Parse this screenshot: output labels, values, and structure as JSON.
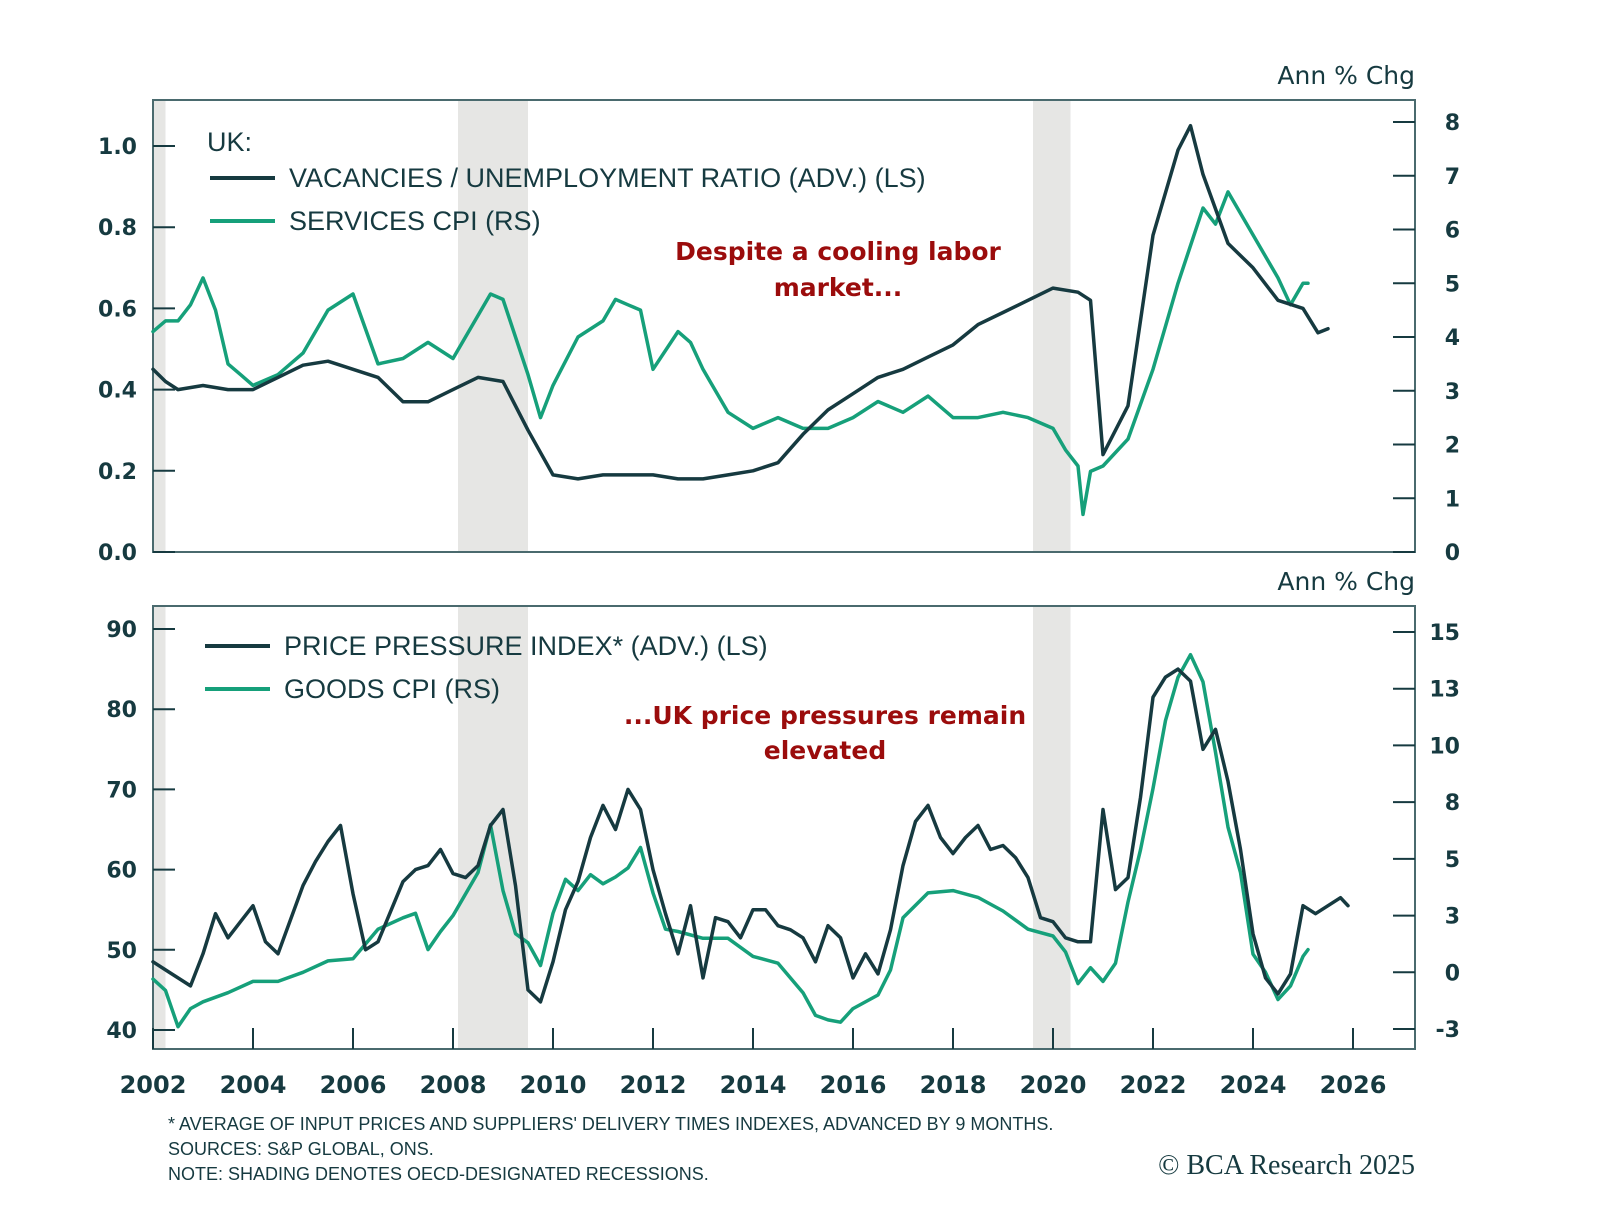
{
  "chart_data": [
    {
      "type": "line",
      "panel": "top",
      "title": "UK:",
      "left_axis": {
        "label": "",
        "range": [
          0.0,
          1.0
        ],
        "ticks": [
          "0.0",
          "0.2",
          "0.4",
          "0.6",
          "0.8",
          "1.0"
        ],
        "tick_values": [
          0,
          0.2,
          0.4,
          0.6,
          0.8,
          1.0
        ]
      },
      "right_axis": {
        "label": "Ann % Chg",
        "range": [
          0,
          8
        ],
        "ticks": [
          "0",
          "1",
          "2",
          "3",
          "4",
          "5",
          "6",
          "7",
          "8"
        ],
        "tick_values": [
          0,
          1,
          2,
          3,
          4,
          5,
          6,
          7,
          8
        ]
      },
      "annotation": [
        "Despite a cooling labor",
        "market..."
      ],
      "series": [
        {
          "name": "VACANCIES / UNEMPLOYMENT RATIO (ADV.) (LS)",
          "axis": "left",
          "color": "#163a40",
          "x": [
            2002.0,
            2002.25,
            2002.5,
            2003.0,
            2003.5,
            2004.0,
            2004.5,
            2005.0,
            2005.5,
            2006.0,
            2006.5,
            2007.0,
            2007.5,
            2008.0,
            2008.5,
            2009.0,
            2009.5,
            2010.0,
            2010.5,
            2011.0,
            2011.5,
            2012.0,
            2012.5,
            2013.0,
            2013.5,
            2014.0,
            2014.5,
            2015.0,
            2015.5,
            2016.0,
            2016.5,
            2017.0,
            2017.5,
            2018.0,
            2018.5,
            2019.0,
            2019.5,
            2020.0,
            2020.5,
            2020.75,
            2021.0,
            2021.5,
            2022.0,
            2022.5,
            2022.75,
            2023.0,
            2023.5,
            2024.0,
            2024.5,
            2025.0,
            2025.3,
            2025.5
          ],
          "values": [
            0.45,
            0.42,
            0.4,
            0.41,
            0.4,
            0.4,
            0.43,
            0.46,
            0.47,
            0.45,
            0.43,
            0.37,
            0.37,
            0.4,
            0.43,
            0.42,
            0.3,
            0.19,
            0.18,
            0.19,
            0.19,
            0.19,
            0.18,
            0.18,
            0.19,
            0.2,
            0.22,
            0.29,
            0.35,
            0.39,
            0.43,
            0.45,
            0.48,
            0.51,
            0.56,
            0.59,
            0.62,
            0.65,
            0.64,
            0.62,
            0.24,
            0.36,
            0.78,
            0.99,
            1.05,
            0.93,
            0.76,
            0.7,
            0.62,
            0.6,
            0.54,
            0.55
          ]
        },
        {
          "name": "SERVICES CPI (RS)",
          "axis": "right",
          "color": "#16a07a",
          "x": [
            2002.0,
            2002.25,
            2002.5,
            2002.75,
            2003.0,
            2003.25,
            2003.5,
            2003.75,
            2004.0,
            2004.5,
            2005.0,
            2005.5,
            2006.0,
            2006.5,
            2007.0,
            2007.5,
            2008.0,
            2008.5,
            2008.75,
            2009.0,
            2009.5,
            2009.75,
            2010.0,
            2010.5,
            2011.0,
            2011.25,
            2011.5,
            2011.75,
            2012.0,
            2012.5,
            2012.75,
            2013.0,
            2013.5,
            2014.0,
            2014.5,
            2015.0,
            2015.5,
            2016.0,
            2016.5,
            2017.0,
            2017.5,
            2018.0,
            2018.5,
            2019.0,
            2019.5,
            2020.0,
            2020.25,
            2020.5,
            2020.6,
            2020.75,
            2021.0,
            2021.5,
            2022.0,
            2022.5,
            2023.0,
            2023.25,
            2023.5,
            2023.75,
            2024.0,
            2024.5,
            2024.75,
            2025.0,
            2025.1
          ],
          "values": [
            4.1,
            4.3,
            4.3,
            4.6,
            5.1,
            4.5,
            3.5,
            3.3,
            3.1,
            3.3,
            3.7,
            4.5,
            4.8,
            3.5,
            3.6,
            3.9,
            3.6,
            4.4,
            4.8,
            4.7,
            3.3,
            2.5,
            3.1,
            4.0,
            4.3,
            4.7,
            4.6,
            4.5,
            3.4,
            4.1,
            3.9,
            3.4,
            2.6,
            2.3,
            2.5,
            2.3,
            2.3,
            2.5,
            2.8,
            2.6,
            2.9,
            2.5,
            2.5,
            2.6,
            2.5,
            2.3,
            1.9,
            1.6,
            0.7,
            1.5,
            1.6,
            2.1,
            3.4,
            5.0,
            6.4,
            6.1,
            6.7,
            6.3,
            5.9,
            5.1,
            4.6,
            5.0,
            5.0
          ]
        }
      ],
      "recessions": [
        [
          2002.0,
          2002.25
        ],
        [
          2008.1,
          2009.5
        ],
        [
          2019.6,
          2020.35
        ]
      ]
    },
    {
      "type": "line",
      "panel": "bottom",
      "left_axis": {
        "label": "",
        "range": [
          40,
          90
        ],
        "ticks": [
          "40",
          "50",
          "60",
          "70",
          "80",
          "90"
        ],
        "tick_values": [
          40,
          50,
          60,
          70,
          80,
          90
        ]
      },
      "right_axis": {
        "label": "Ann % Chg",
        "range": [
          -2.5,
          15
        ],
        "ticks": [
          "-3",
          "0",
          "3",
          "5",
          "8",
          "10",
          "13",
          "15"
        ],
        "tick_values": [
          -2.5,
          0,
          2.5,
          5,
          7.5,
          10,
          12.5,
          15
        ]
      },
      "annotation": [
        "...UK price pressures remain",
        "elevated"
      ],
      "series": [
        {
          "name": "PRICE PRESSURE INDEX* (ADV.) (LS)",
          "axis": "left",
          "color": "#163a40",
          "x": [
            2002.0,
            2002.25,
            2002.5,
            2002.75,
            2003.0,
            2003.25,
            2003.5,
            2003.75,
            2004.0,
            2004.25,
            2004.5,
            2005.0,
            2005.25,
            2005.5,
            2005.75,
            2006.0,
            2006.25,
            2006.5,
            2007.0,
            2007.25,
            2007.5,
            2007.75,
            2008.0,
            2008.25,
            2008.5,
            2008.75,
            2009.0,
            2009.25,
            2009.5,
            2009.75,
            2010.0,
            2010.25,
            2010.5,
            2010.75,
            2011.0,
            2011.25,
            2011.5,
            2011.75,
            2012.0,
            2012.25,
            2012.5,
            2012.75,
            2013.0,
            2013.25,
            2013.5,
            2013.75,
            2014.0,
            2014.25,
            2014.5,
            2014.75,
            2015.0,
            2015.25,
            2015.5,
            2015.75,
            2016.0,
            2016.25,
            2016.5,
            2016.75,
            2017.0,
            2017.25,
            2017.5,
            2017.75,
            2018.0,
            2018.25,
            2018.5,
            2018.75,
            2019.0,
            2019.25,
            2019.5,
            2019.75,
            2020.0,
            2020.25,
            2020.5,
            2020.75,
            2021.0,
            2021.25,
            2021.5,
            2021.75,
            2022.0,
            2022.25,
            2022.5,
            2022.75,
            2023.0,
            2023.25,
            2023.5,
            2023.75,
            2024.0,
            2024.25,
            2024.5,
            2024.75,
            2025.0,
            2025.25,
            2025.5,
            2025.75,
            2025.9
          ],
          "values": [
            48.5,
            47.5,
            46.5,
            45.5,
            49.5,
            54.5,
            51.5,
            53.5,
            55.5,
            51.0,
            49.5,
            58.0,
            61.0,
            63.5,
            65.5,
            57.0,
            50.0,
            51.0,
            58.5,
            60.0,
            60.5,
            62.5,
            59.5,
            59.0,
            60.5,
            65.5,
            67.5,
            58.0,
            45.0,
            43.5,
            48.5,
            55.0,
            58.5,
            64.0,
            68.0,
            65.0,
            70.0,
            67.5,
            60.0,
            54.5,
            49.5,
            55.5,
            46.5,
            54.0,
            53.5,
            51.5,
            55.0,
            55.0,
            53.0,
            52.5,
            51.5,
            48.5,
            53.0,
            51.5,
            46.5,
            49.5,
            47.0,
            52.5,
            60.5,
            66.0,
            68.0,
            64.0,
            62.0,
            64.0,
            65.5,
            62.5,
            63.0,
            61.5,
            59.0,
            54.0,
            53.5,
            51.5,
            51.0,
            51.0,
            67.5,
            57.5,
            59.0,
            69.0,
            81.5,
            84.0,
            85.0,
            83.5,
            75.0,
            77.5,
            71.0,
            62.5,
            52.0,
            46.5,
            44.5,
            47.0,
            55.5,
            54.5,
            55.5,
            56.5,
            55.5
          ]
        },
        {
          "name": "GOODS CPI (RS)",
          "axis": "right",
          "color": "#16a07a",
          "x": [
            2002.0,
            2002.25,
            2002.5,
            2002.75,
            2003.0,
            2003.5,
            2004.0,
            2004.5,
            2005.0,
            2005.5,
            2006.0,
            2006.5,
            2007.0,
            2007.25,
            2007.5,
            2007.75,
            2008.0,
            2008.5,
            2008.75,
            2009.0,
            2009.25,
            2009.5,
            2009.75,
            2010.0,
            2010.25,
            2010.5,
            2010.75,
            2011.0,
            2011.25,
            2011.5,
            2011.75,
            2012.0,
            2012.25,
            2012.5,
            2013.0,
            2013.5,
            2014.0,
            2014.5,
            2015.0,
            2015.25,
            2015.5,
            2015.75,
            2016.0,
            2016.5,
            2016.75,
            2017.0,
            2017.5,
            2018.0,
            2018.5,
            2019.0,
            2019.5,
            2020.0,
            2020.25,
            2020.5,
            2020.75,
            2021.0,
            2021.25,
            2021.5,
            2021.75,
            2022.0,
            2022.25,
            2022.5,
            2022.75,
            2023.0,
            2023.25,
            2023.5,
            2023.75,
            2024.0,
            2024.25,
            2024.5,
            2024.75,
            2025.0,
            2025.1
          ],
          "values": [
            -0.3,
            -0.8,
            -2.4,
            -1.6,
            -1.3,
            -0.9,
            -0.4,
            -0.4,
            0.0,
            0.5,
            0.6,
            1.9,
            2.4,
            2.6,
            1.0,
            1.8,
            2.5,
            4.4,
            6.5,
            3.6,
            1.7,
            1.3,
            0.3,
            2.6,
            4.1,
            3.6,
            4.3,
            3.9,
            4.2,
            4.6,
            5.5,
            3.5,
            1.9,
            1.8,
            1.5,
            1.5,
            0.7,
            0.4,
            -0.9,
            -1.9,
            -2.1,
            -2.2,
            -1.6,
            -1.0,
            0.1,
            2.4,
            3.5,
            3.6,
            3.3,
            2.7,
            1.9,
            1.6,
            0.9,
            -0.5,
            0.2,
            -0.4,
            0.4,
            3.1,
            5.4,
            8.1,
            11.1,
            13.0,
            14.0,
            12.8,
            9.7,
            6.4,
            4.4,
            0.8,
            0.0,
            -1.2,
            -0.6,
            0.7,
            1.0
          ]
        }
      ],
      "recessions": [
        [
          2002.0,
          2002.25
        ],
        [
          2008.1,
          2009.5
        ],
        [
          2019.6,
          2020.35
        ]
      ]
    }
  ],
  "x_axis": {
    "range": [
      2002,
      2026
    ],
    "ticks": [
      "2002",
      "2004",
      "2006",
      "2008",
      "2010",
      "2012",
      "2014",
      "2016",
      "2018",
      "2020",
      "2022",
      "2024",
      "2026"
    ],
    "tick_values": [
      2002,
      2004,
      2006,
      2008,
      2010,
      2012,
      2014,
      2016,
      2018,
      2020,
      2022,
      2024,
      2026
    ]
  },
  "footer": {
    "note1": "* AVERAGE OF INPUT PRICES AND SUPPLIERS' DELIVERY TIMES INDEXES, ADVANCED BY 9 MONTHS.",
    "note2": "SOURCES: S&P GLOBAL, ONS.",
    "note3": "NOTE: SHADING DENOTES OECD-DESIGNATED RECESSIONS.",
    "copyright": "© BCA Research 2025"
  },
  "colors": {
    "dark": "#163a40",
    "green": "#16a07a",
    "annotation": "#9b0c0c",
    "recession": "#e6e6e4",
    "frame": "#4a6a6e"
  }
}
